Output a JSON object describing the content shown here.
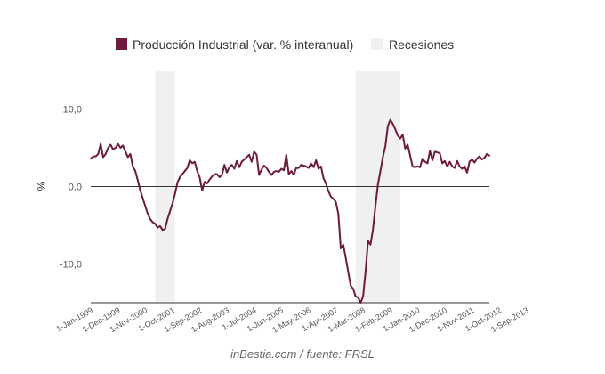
{
  "chart_data": {
    "type": "line",
    "ylabel": "%",
    "ylim": [
      -15,
      13
    ],
    "yticks": [
      {
        "value": 10,
        "label": "10,0"
      },
      {
        "value": 0,
        "label": "0,0"
      },
      {
        "value": -10,
        "label": "-10,0"
      }
    ],
    "xticks": [
      {
        "date": "1999-01",
        "label": "1-Jan-1999"
      },
      {
        "date": "1999-12",
        "label": "1-Dec-1999"
      },
      {
        "date": "2000-11",
        "label": "1-Nov-2000"
      },
      {
        "date": "2001-10",
        "label": "1-Oct-2001"
      },
      {
        "date": "2002-09",
        "label": "1-Sep-2002"
      },
      {
        "date": "2003-08",
        "label": "1-Aug-2003"
      },
      {
        "date": "2004-07",
        "label": "1-Jul-2004"
      },
      {
        "date": "2005-06",
        "label": "1-Jun-2005"
      },
      {
        "date": "2006-05",
        "label": "1-May-2006"
      },
      {
        "date": "2007-04",
        "label": "1-Apr-2007"
      },
      {
        "date": "2008-03",
        "label": "1-Mar-2008"
      },
      {
        "date": "2009-02",
        "label": "1-Feb-2009"
      },
      {
        "date": "2010-01",
        "label": "1-Jan-2010"
      },
      {
        "date": "2010-12",
        "label": "1-Dec-2010"
      },
      {
        "date": "2011-11",
        "label": "1-Nov-2011"
      },
      {
        "date": "2012-10",
        "label": "1-Oct-2012"
      },
      {
        "date": "2013-09",
        "label": "1-Sep-2013"
      }
    ],
    "legend_position": "top",
    "recessions": [
      {
        "start": "2001-03",
        "end": "2001-11"
      },
      {
        "start": "2007-12",
        "end": "2009-06"
      }
    ],
    "recession_legend": "Recesiones",
    "series": [
      {
        "name": "Producción Industrial (var. % interanual)",
        "color": "#6d1a3e",
        "points": [
          [
            "1999-01",
            3.6
          ],
          [
            "1999-02",
            3.9
          ],
          [
            "1999-03",
            3.9
          ],
          [
            "1999-04",
            4.2
          ],
          [
            "1999-05",
            5.5
          ],
          [
            "1999-06",
            3.8
          ],
          [
            "1999-07",
            4.2
          ],
          [
            "1999-08",
            5.0
          ],
          [
            "1999-09",
            5.4
          ],
          [
            "1999-10",
            4.8
          ],
          [
            "1999-11",
            5.0
          ],
          [
            "1999-12",
            5.5
          ],
          [
            "2000-01",
            5.0
          ],
          [
            "2000-02",
            5.3
          ],
          [
            "2000-03",
            4.5
          ],
          [
            "2000-04",
            3.8
          ],
          [
            "2000-05",
            4.2
          ],
          [
            "2000-06",
            2.6
          ],
          [
            "2000-07",
            2.0
          ],
          [
            "2000-08",
            0.8
          ],
          [
            "2000-09",
            -0.5
          ],
          [
            "2000-10",
            -1.5
          ],
          [
            "2000-11",
            -2.5
          ],
          [
            "2000-12",
            -3.5
          ],
          [
            "2001-01",
            -4.2
          ],
          [
            "2001-02",
            -4.6
          ],
          [
            "2001-03",
            -4.8
          ],
          [
            "2001-04",
            -5.3
          ],
          [
            "2001-05",
            -5.1
          ],
          [
            "2001-06",
            -5.6
          ],
          [
            "2001-07",
            -5.5
          ],
          [
            "2001-08",
            -4.2
          ],
          [
            "2001-09",
            -3.2
          ],
          [
            "2001-10",
            -2.2
          ],
          [
            "2001-11",
            -1.0
          ],
          [
            "2001-12",
            0.5
          ],
          [
            "2002-01",
            1.2
          ],
          [
            "2002-02",
            1.6
          ],
          [
            "2002-03",
            2.0
          ],
          [
            "2002-04",
            2.4
          ],
          [
            "2002-05",
            3.4
          ],
          [
            "2002-06",
            3.0
          ],
          [
            "2002-07",
            3.2
          ],
          [
            "2002-08",
            2.0
          ],
          [
            "2002-09",
            1.2
          ],
          [
            "2002-10",
            -0.5
          ],
          [
            "2002-11",
            0.6
          ],
          [
            "2002-12",
            0.4
          ],
          [
            "2003-01",
            0.9
          ],
          [
            "2003-02",
            1.3
          ],
          [
            "2003-03",
            1.6
          ],
          [
            "2003-04",
            1.6
          ],
          [
            "2003-05",
            1.2
          ],
          [
            "2003-06",
            1.5
          ],
          [
            "2003-07",
            2.8
          ],
          [
            "2003-08",
            1.8
          ],
          [
            "2003-09",
            2.5
          ],
          [
            "2003-10",
            2.8
          ],
          [
            "2003-11",
            2.3
          ],
          [
            "2003-12",
            3.3
          ],
          [
            "2004-01",
            2.5
          ],
          [
            "2004-02",
            3.2
          ],
          [
            "2004-03",
            3.5
          ],
          [
            "2004-04",
            3.8
          ],
          [
            "2004-05",
            4.1
          ],
          [
            "2004-06",
            3.2
          ],
          [
            "2004-07",
            4.5
          ],
          [
            "2004-08",
            4.1
          ],
          [
            "2004-09",
            1.5
          ],
          [
            "2004-10",
            2.2
          ],
          [
            "2004-11",
            2.7
          ],
          [
            "2004-12",
            2.4
          ],
          [
            "2005-01",
            1.9
          ],
          [
            "2005-02",
            1.5
          ],
          [
            "2005-03",
            1.9
          ],
          [
            "2005-04",
            2.0
          ],
          [
            "2005-05",
            1.9
          ],
          [
            "2005-06",
            2.3
          ],
          [
            "2005-07",
            2.1
          ],
          [
            "2005-08",
            4.1
          ],
          [
            "2005-09",
            1.6
          ],
          [
            "2005-10",
            2.0
          ],
          [
            "2005-11",
            1.5
          ],
          [
            "2005-12",
            2.4
          ],
          [
            "2006-01",
            2.4
          ],
          [
            "2006-02",
            2.8
          ],
          [
            "2006-03",
            2.7
          ],
          [
            "2006-04",
            2.6
          ],
          [
            "2006-05",
            2.4
          ],
          [
            "2006-06",
            3.0
          ],
          [
            "2006-07",
            2.5
          ],
          [
            "2006-08",
            3.4
          ],
          [
            "2006-09",
            2.3
          ],
          [
            "2006-10",
            2.6
          ],
          [
            "2006-11",
            1.1
          ],
          [
            "2006-12",
            0.4
          ],
          [
            "2007-01",
            -0.6
          ],
          [
            "2007-02",
            -1.3
          ],
          [
            "2007-03",
            -1.6
          ],
          [
            "2007-04",
            -2.0
          ],
          [
            "2007-05",
            -3.5
          ],
          [
            "2007-06",
            -8.0
          ],
          [
            "2007-07",
            -7.5
          ],
          [
            "2007-08",
            -9.2
          ],
          [
            "2007-09",
            -11.0
          ],
          [
            "2007-10",
            -12.8
          ],
          [
            "2007-11",
            -13.2
          ],
          [
            "2007-12",
            -14.2
          ],
          [
            "2008-01",
            -14.3
          ],
          [
            "2008-02",
            -15.0
          ],
          [
            "2008-03",
            -14.2
          ],
          [
            "2008-04",
            -11.0
          ],
          [
            "2008-05",
            -7.0
          ],
          [
            "2008-06",
            -7.5
          ],
          [
            "2008-07",
            -5.5
          ],
          [
            "2008-08",
            -2.5
          ],
          [
            "2008-09",
            0.3
          ],
          [
            "2008-10",
            2.0
          ],
          [
            "2008-11",
            3.8
          ],
          [
            "2008-12",
            5.2
          ],
          [
            "2009-01",
            7.8
          ],
          [
            "2009-02",
            8.6
          ],
          [
            "2009-03",
            8.1
          ],
          [
            "2009-04",
            7.4
          ],
          [
            "2009-05",
            6.6
          ],
          [
            "2009-06",
            6.2
          ],
          [
            "2009-07",
            6.7
          ],
          [
            "2009-08",
            4.9
          ],
          [
            "2009-09",
            5.4
          ],
          [
            "2009-10",
            4.0
          ],
          [
            "2009-11",
            2.6
          ],
          [
            "2009-12",
            2.5
          ],
          [
            "2010-01",
            2.6
          ],
          [
            "2010-02",
            2.5
          ],
          [
            "2010-03",
            3.6
          ],
          [
            "2010-04",
            3.2
          ],
          [
            "2010-05",
            3.0
          ],
          [
            "2010-06",
            4.6
          ],
          [
            "2010-07",
            3.4
          ],
          [
            "2010-08",
            4.5
          ],
          [
            "2010-09",
            4.4
          ],
          [
            "2010-10",
            4.3
          ],
          [
            "2010-11",
            3.0
          ],
          [
            "2010-12",
            3.3
          ],
          [
            "2011-01",
            2.6
          ],
          [
            "2011-02",
            3.2
          ],
          [
            "2011-03",
            2.6
          ],
          [
            "2011-04",
            2.4
          ],
          [
            "2011-05",
            3.3
          ],
          [
            "2011-06",
            2.6
          ],
          [
            "2011-07",
            2.3
          ],
          [
            "2011-08",
            2.6
          ],
          [
            "2011-09",
            1.8
          ],
          [
            "2011-10",
            3.2
          ],
          [
            "2011-11",
            3.5
          ],
          [
            "2011-12",
            3.1
          ],
          [
            "2012-01",
            3.6
          ],
          [
            "2012-02",
            3.9
          ],
          [
            "2012-03",
            3.5
          ],
          [
            "2012-04",
            3.7
          ],
          [
            "2012-05",
            4.2
          ],
          [
            "2012-06",
            4.0
          ]
        ]
      }
    ],
    "source": "inBestia.com / fuente: FRSL"
  }
}
